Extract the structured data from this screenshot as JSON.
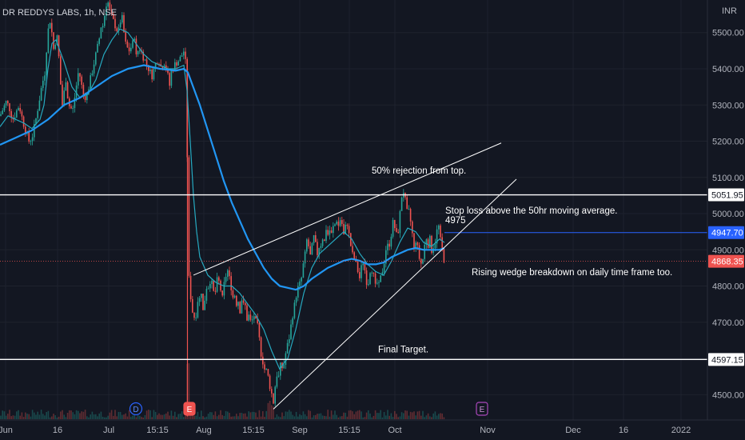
{
  "chart_data": {
    "type": "candlestick",
    "title": "DR REDDYS LABS, 1h, NSE",
    "currency": "INR",
    "ylim": [
      4430,
      5590
    ],
    "y_ticks": [
      4500,
      4600,
      4700,
      4800,
      4900,
      5000,
      5100,
      5200,
      5300,
      5400,
      5500
    ],
    "y_tick_labels": [
      "4500.00",
      "4600.00",
      "4700.00",
      "4800.00",
      "4900.00",
      "5000.00",
      "5100.00",
      "5200.00",
      "5300.00",
      "5400.00",
      "5500.00"
    ],
    "x_labels": [
      "Jun",
      "16",
      "Jul",
      "15:15",
      "Aug",
      "15:15",
      "Sep",
      "15:15",
      "Oct",
      "Nov",
      "Dec",
      "16",
      "2022"
    ],
    "grid": true,
    "colors": {
      "background": "#131722",
      "grid": "#1e222d",
      "up": "#26a69a",
      "down": "#ef5350",
      "ma_short": "#26a9c0",
      "ma_long": "#2196f3",
      "line": "#ffffff",
      "badge_blue": "#2962ff",
      "badge_red": "#ef5350"
    },
    "price_path": [
      [
        0,
        5270
      ],
      [
        4,
        5290
      ],
      [
        8,
        5310
      ],
      [
        12,
        5290
      ],
      [
        16,
        5260
      ],
      [
        20,
        5280
      ],
      [
        24,
        5300
      ],
      [
        28,
        5260
      ],
      [
        32,
        5230
      ],
      [
        36,
        5200
      ],
      [
        40,
        5210
      ],
      [
        44,
        5250
      ],
      [
        48,
        5300
      ],
      [
        52,
        5350
      ],
      [
        56,
        5390
      ],
      [
        58,
        5450
      ],
      [
        60,
        5500
      ],
      [
        62,
        5540
      ],
      [
        64,
        5520
      ],
      [
        66,
        5470
      ],
      [
        68,
        5440
      ],
      [
        70,
        5500
      ],
      [
        72,
        5480
      ],
      [
        74,
        5420
      ],
      [
        76,
        5350
      ],
      [
        78,
        5300
      ],
      [
        80,
        5330
      ],
      [
        82,
        5380
      ],
      [
        84,
        5340
      ],
      [
        86,
        5290
      ],
      [
        88,
        5310
      ],
      [
        90,
        5270
      ],
      [
        92,
        5300
      ],
      [
        94,
        5330
      ],
      [
        96,
        5360
      ],
      [
        98,
        5390
      ],
      [
        100,
        5380
      ],
      [
        104,
        5330
      ],
      [
        108,
        5320
      ],
      [
        112,
        5360
      ],
      [
        116,
        5400
      ],
      [
        120,
        5440
      ],
      [
        124,
        5480
      ],
      [
        126,
        5520
      ],
      [
        128,
        5510
      ],
      [
        130,
        5540
      ],
      [
        132,
        5560
      ],
      [
        134,
        5600
      ],
      [
        136,
        5570
      ],
      [
        140,
        5540
      ],
      [
        144,
        5520
      ],
      [
        148,
        5500
      ],
      [
        152,
        5550
      ],
      [
        154,
        5520
      ],
      [
        156,
        5480
      ],
      [
        158,
        5460
      ],
      [
        162,
        5450
      ],
      [
        166,
        5470
      ],
      [
        168,
        5500
      ],
      [
        170,
        5430
      ],
      [
        174,
        5460
      ],
      [
        178,
        5440
      ],
      [
        182,
        5420
      ],
      [
        186,
        5400
      ],
      [
        190,
        5380
      ],
      [
        194,
        5410
      ],
      [
        198,
        5430
      ],
      [
        202,
        5400
      ],
      [
        206,
        5420
      ],
      [
        210,
        5380
      ],
      [
        212,
        5350
      ],
      [
        214,
        5390
      ],
      [
        218,
        5410
      ],
      [
        222,
        5420
      ],
      [
        226,
        5430
      ],
      [
        230,
        5450
      ],
      [
        233,
        5400
      ],
      [
        234,
        5200
      ],
      [
        235,
        5000
      ],
      [
        236,
        4830
      ],
      [
        238,
        4780
      ],
      [
        240,
        4750
      ],
      [
        242,
        4700
      ],
      [
        244,
        4730
      ],
      [
        246,
        4720
      ],
      [
        248,
        4780
      ],
      [
        250,
        4760
      ],
      [
        252,
        4790
      ],
      [
        254,
        4730
      ],
      [
        256,
        4760
      ],
      [
        258,
        4800
      ],
      [
        260,
        4790
      ],
      [
        262,
        4820
      ],
      [
        264,
        4810
      ],
      [
        266,
        4800
      ],
      [
        268,
        4770
      ],
      [
        270,
        4790
      ],
      [
        272,
        4820
      ],
      [
        274,
        4810
      ],
      [
        276,
        4790
      ],
      [
        278,
        4760
      ],
      [
        280,
        4800
      ],
      [
        282,
        4820
      ],
      [
        284,
        4850
      ],
      [
        286,
        4830
      ],
      [
        288,
        4810
      ],
      [
        290,
        4790
      ],
      [
        292,
        4760
      ],
      [
        294,
        4780
      ],
      [
        296,
        4750
      ],
      [
        298,
        4760
      ],
      [
        300,
        4730
      ],
      [
        302,
        4770
      ],
      [
        304,
        4740
      ],
      [
        306,
        4760
      ],
      [
        308,
        4720
      ],
      [
        310,
        4700
      ],
      [
        312,
        4730
      ],
      [
        314,
        4690
      ],
      [
        316,
        4710
      ],
      [
        318,
        4720
      ],
      [
        320,
        4700
      ],
      [
        322,
        4690
      ],
      [
        324,
        4660
      ],
      [
        326,
        4620
      ],
      [
        328,
        4600
      ],
      [
        330,
        4580
      ],
      [
        332,
        4560
      ],
      [
        334,
        4570
      ],
      [
        336,
        4540
      ],
      [
        338,
        4520
      ],
      [
        340,
        4500
      ],
      [
        342,
        4480
      ],
      [
        344,
        4520
      ],
      [
        346,
        4560
      ],
      [
        348,
        4540
      ],
      [
        350,
        4570
      ],
      [
        352,
        4590
      ],
      [
        354,
        4560
      ],
      [
        356,
        4600
      ],
      [
        358,
        4620
      ],
      [
        360,
        4640
      ],
      [
        362,
        4660
      ],
      [
        364,
        4690
      ],
      [
        366,
        4720
      ],
      [
        368,
        4740
      ],
      [
        370,
        4770
      ],
      [
        372,
        4790
      ],
      [
        374,
        4800
      ],
      [
        376,
        4810
      ],
      [
        378,
        4830
      ],
      [
        380,
        4870
      ],
      [
        382,
        4890
      ],
      [
        384,
        4930
      ],
      [
        386,
        4910
      ],
      [
        388,
        4880
      ],
      [
        390,
        4900
      ],
      [
        392,
        4940
      ],
      [
        394,
        4920
      ],
      [
        396,
        4900
      ],
      [
        398,
        4880
      ],
      [
        400,
        4930
      ],
      [
        402,
        4910
      ],
      [
        404,
        4940
      ],
      [
        406,
        4920
      ],
      [
        408,
        4960
      ],
      [
        410,
        4940
      ],
      [
        412,
        4960
      ],
      [
        414,
        4930
      ],
      [
        416,
        4970
      ],
      [
        418,
        4950
      ],
      [
        420,
        4990
      ],
      [
        422,
        4980
      ],
      [
        424,
        4960
      ],
      [
        426,
        4990
      ],
      [
        428,
        4970
      ],
      [
        430,
        4940
      ],
      [
        432,
        4960
      ],
      [
        434,
        4980
      ],
      [
        436,
        4950
      ],
      [
        438,
        4920
      ],
      [
        440,
        4900
      ],
      [
        442,
        4870
      ],
      [
        444,
        4880
      ],
      [
        446,
        4850
      ],
      [
        448,
        4840
      ],
      [
        450,
        4820
      ],
      [
        452,
        4850
      ],
      [
        454,
        4870
      ],
      [
        456,
        4850
      ],
      [
        458,
        4820
      ],
      [
        460,
        4800
      ],
      [
        462,
        4830
      ],
      [
        464,
        4860
      ],
      [
        466,
        4840
      ],
      [
        468,
        4820
      ],
      [
        470,
        4790
      ],
      [
        472,
        4810
      ],
      [
        474,
        4800
      ],
      [
        476,
        4820
      ],
      [
        478,
        4840
      ],
      [
        480,
        4860
      ],
      [
        482,
        4890
      ],
      [
        484,
        4920
      ],
      [
        486,
        4900
      ],
      [
        488,
        4930
      ],
      [
        490,
        4950
      ],
      [
        492,
        4980
      ],
      [
        494,
        4960
      ],
      [
        496,
        4940
      ],
      [
        498,
        4950
      ],
      [
        500,
        4990
      ],
      [
        502,
        5040
      ],
      [
        504,
        5070
      ],
      [
        506,
        5050
      ],
      [
        508,
        5020
      ],
      [
        510,
        4990
      ],
      [
        512,
        5010
      ],
      [
        514,
        4970
      ],
      [
        516,
        4940
      ],
      [
        518,
        4900
      ],
      [
        520,
        4930
      ],
      [
        522,
        4910
      ],
      [
        524,
        4880
      ],
      [
        526,
        4870
      ],
      [
        528,
        4850
      ],
      [
        530,
        4900
      ],
      [
        532,
        4920
      ],
      [
        534,
        4940
      ],
      [
        536,
        4910
      ],
      [
        538,
        4930
      ],
      [
        540,
        4900
      ],
      [
        542,
        4910
      ],
      [
        544,
        4920
      ],
      [
        546,
        4940
      ],
      [
        548,
        4980
      ],
      [
        550,
        4940
      ],
      [
        552,
        4910
      ],
      [
        554,
        4890
      ],
      [
        556,
        4868
      ]
    ],
    "ma_short_path": [
      [
        0,
        5240
      ],
      [
        10,
        5270
      ],
      [
        20,
        5260
      ],
      [
        30,
        5250
      ],
      [
        40,
        5235
      ],
      [
        50,
        5260
      ],
      [
        55,
        5300
      ],
      [
        60,
        5400
      ],
      [
        65,
        5470
      ],
      [
        70,
        5480
      ],
      [
        80,
        5420
      ],
      [
        90,
        5350
      ],
      [
        100,
        5320
      ],
      [
        110,
        5330
      ],
      [
        120,
        5370
      ],
      [
        130,
        5440
      ],
      [
        140,
        5480
      ],
      [
        150,
        5510
      ],
      [
        160,
        5500
      ],
      [
        170,
        5470
      ],
      [
        180,
        5440
      ],
      [
        190,
        5420
      ],
      [
        200,
        5410
      ],
      [
        210,
        5400
      ],
      [
        220,
        5400
      ],
      [
        230,
        5410
      ],
      [
        234,
        5340
      ],
      [
        238,
        5200
      ],
      [
        242,
        5050
      ],
      [
        246,
        4950
      ],
      [
        250,
        4880
      ],
      [
        260,
        4830
      ],
      [
        270,
        4810
      ],
      [
        280,
        4800
      ],
      [
        290,
        4800
      ],
      [
        300,
        4780
      ],
      [
        310,
        4750
      ],
      [
        320,
        4720
      ],
      [
        330,
        4680
      ],
      [
        340,
        4620
      ],
      [
        350,
        4570
      ],
      [
        356,
        4590
      ],
      [
        360,
        4600
      ],
      [
        370,
        4680
      ],
      [
        380,
        4780
      ],
      [
        390,
        4850
      ],
      [
        400,
        4890
      ],
      [
        410,
        4910
      ],
      [
        420,
        4930
      ],
      [
        430,
        4950
      ],
      [
        440,
        4930
      ],
      [
        450,
        4890
      ],
      [
        460,
        4860
      ],
      [
        470,
        4840
      ],
      [
        480,
        4830
      ],
      [
        490,
        4870
      ],
      [
        500,
        4920
      ],
      [
        510,
        4960
      ],
      [
        520,
        4950
      ],
      [
        530,
        4920
      ],
      [
        540,
        4910
      ],
      [
        550,
        4930
      ],
      [
        556,
        4920
      ]
    ],
    "ma_long_path": [
      [
        0,
        5190
      ],
      [
        20,
        5210
      ],
      [
        40,
        5230
      ],
      [
        60,
        5260
      ],
      [
        80,
        5300
      ],
      [
        100,
        5320
      ],
      [
        120,
        5350
      ],
      [
        140,
        5380
      ],
      [
        160,
        5400
      ],
      [
        180,
        5410
      ],
      [
        200,
        5400
      ],
      [
        220,
        5395
      ],
      [
        230,
        5400
      ],
      [
        235,
        5390
      ],
      [
        240,
        5360
      ],
      [
        250,
        5300
      ],
      [
        260,
        5230
      ],
      [
        270,
        5160
      ],
      [
        280,
        5090
      ],
      [
        290,
        5030
      ],
      [
        300,
        4980
      ],
      [
        310,
        4930
      ],
      [
        320,
        4890
      ],
      [
        330,
        4850
      ],
      [
        340,
        4820
      ],
      [
        350,
        4800
      ],
      [
        360,
        4795
      ],
      [
        370,
        4790
      ],
      [
        380,
        4800
      ],
      [
        390,
        4820
      ],
      [
        400,
        4835
      ],
      [
        410,
        4850
      ],
      [
        420,
        4860
      ],
      [
        430,
        4870
      ],
      [
        440,
        4875
      ],
      [
        450,
        4870
      ],
      [
        460,
        4860
      ],
      [
        470,
        4860
      ],
      [
        480,
        4865
      ],
      [
        490,
        4880
      ],
      [
        500,
        4890
      ],
      [
        510,
        4900
      ],
      [
        520,
        4905
      ],
      [
        530,
        4900
      ],
      [
        540,
        4900
      ],
      [
        550,
        4900
      ],
      [
        556,
        4905
      ]
    ],
    "horizontal_levels": [
      {
        "value": 5051.95,
        "label": "5051.95",
        "style": "white"
      },
      {
        "value": 4947.7,
        "label": "4947.70",
        "style": "blue"
      },
      {
        "value": 4868.35,
        "label": "4868.35",
        "style": "red"
      },
      {
        "value": 4597.15,
        "label": "4597.15",
        "style": "white"
      }
    ],
    "trendlines": [
      {
        "x1": 242,
        "y1": 4830,
        "x2": 627,
        "y2": 5195
      },
      {
        "x1": 342,
        "y1": 4460,
        "x2": 646,
        "y2": 5095
      }
    ],
    "annotations": [
      {
        "text": "50% rejection from top.",
        "x": 465,
        "y": 5110
      },
      {
        "text": "Stop loss above the 50hr moving average.",
        "x": 557,
        "y": 5000
      },
      {
        "text": "4975",
        "x": 557,
        "y": 4973
      },
      {
        "text": "Rising wedge breakdown on daily time frame too.",
        "x": 590,
        "y": 4830
      },
      {
        "text": "Final Target.",
        "x": 473,
        "y": 4617
      }
    ],
    "event_markers": [
      {
        "label": "D",
        "x": 170,
        "kind": "dividend"
      },
      {
        "label": "E",
        "x": 237,
        "kind": "earnings"
      },
      {
        "label": "E",
        "x": 603,
        "kind": "earnings-upcoming"
      }
    ]
  }
}
